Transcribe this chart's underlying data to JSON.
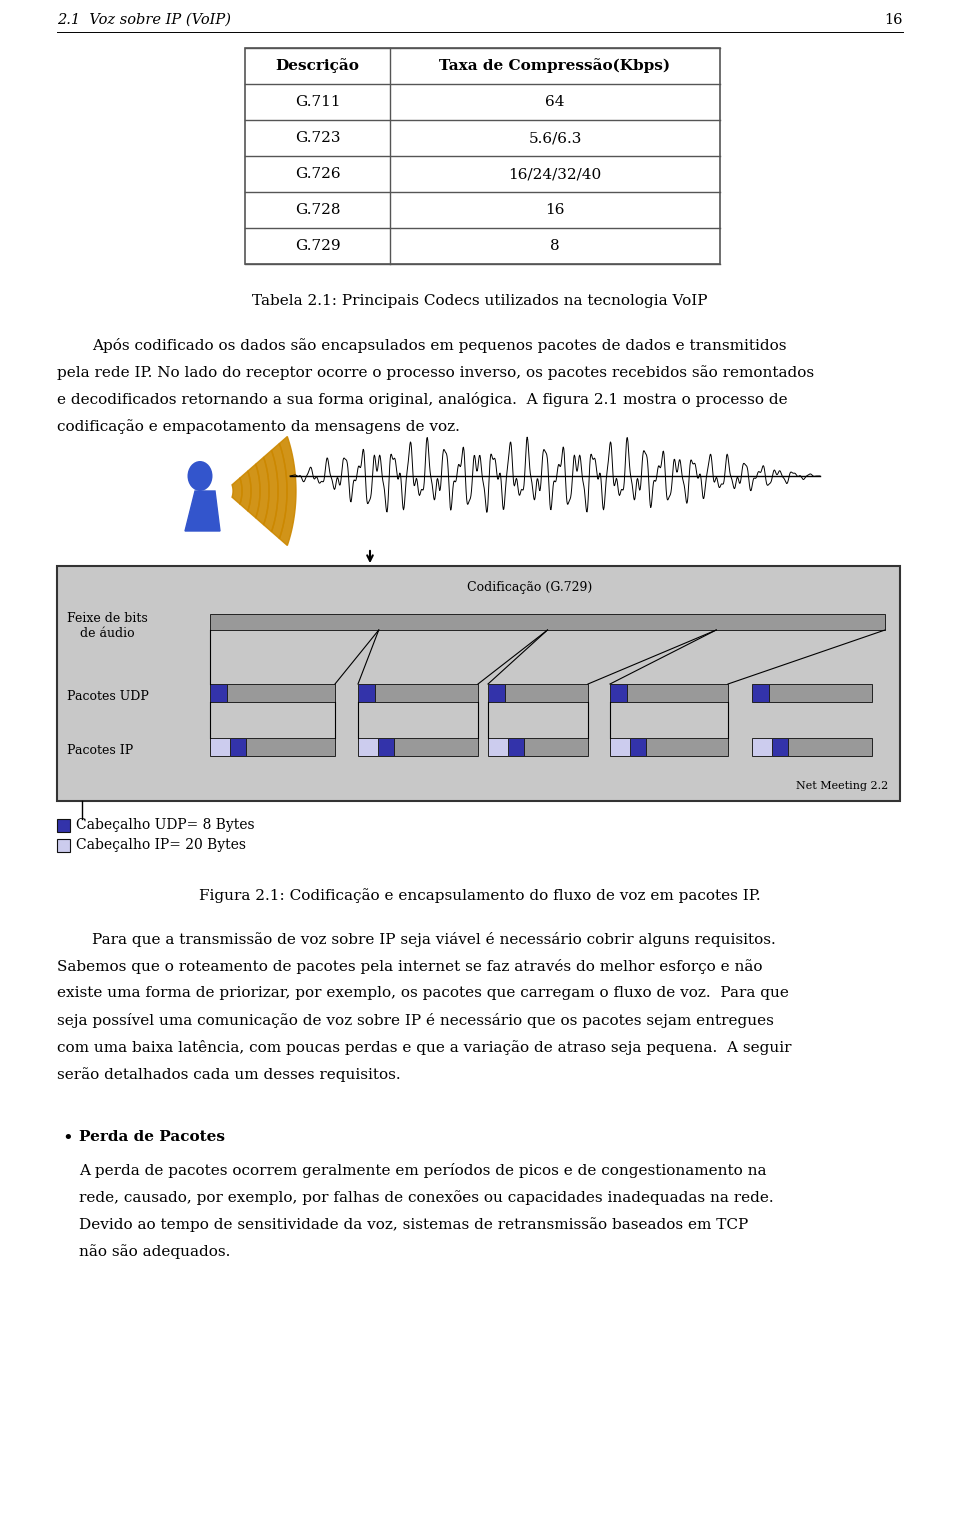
{
  "bg_color": "#ffffff",
  "page_width": 9.6,
  "page_height": 15.27,
  "header_text": "2.1  Voz sobre IP (VoIP)",
  "header_page_num": "16",
  "table_title": "Tabela 2.1: Principais Codecs utilizados na tecnologia VoIP",
  "table_headers": [
    "Descrição",
    "Taxa de Compressão(Kbps)"
  ],
  "table_rows": [
    [
      "G.711",
      "64"
    ],
    [
      "G.723",
      "5.6/6.3"
    ],
    [
      "G.726",
      "16/24/32/40"
    ],
    [
      "G.728",
      "16"
    ],
    [
      "G.729",
      "8"
    ]
  ],
  "figure_caption": "Figura 2.1: Codificação e encapsulamento do fluxo de voz em pacotes IP.",
  "legend1_color": "#3333aa",
  "legend1_text": "Cabeçalho UDP= 8 Bytes",
  "legend2_color": "#ccccee",
  "legend2_text": "Cabeçalho IP= 20 Bytes",
  "diagram_label_bits": "Feixe de bits\nde áudio",
  "diagram_label_udp": "Pacotes UDP",
  "diagram_label_ip": "Pacotes IP",
  "diagram_label_cod": "Codificação (G.729)",
  "diagram_label_netmtg": "Net Meeting 2.2",
  "para1_lines": [
    "Após codificado os dados são encapsulados em pequenos pacotes de dados e transmitidos",
    "pela rede IP. No lado do receptor ocorre o processo inverso, os pacotes recebidos são remontados",
    "e decodificados retornando a sua forma original, analógica.  A figura 2.1 mostra o processo de",
    "codificação e empacotamento da mensagens de voz."
  ],
  "para2_lines": [
    "Para que a transmissão de voz sobre IP seja viável é necessário cobrir alguns requisitos.",
    "Sabemos que o roteamento de pacotes pela internet se faz através do melhor esforço e não",
    "existe uma forma de priorizar, por exemplo, os pacotes que carregam o fluxo de voz.  Para que",
    "seja possível uma comunicação de voz sobre IP é necessário que os pacotes sejam entregues",
    "com uma baixa latência, com poucas perdas e que a variação de atraso seja pequena.  A seguir",
    "serão detalhados cada um desses requisitos."
  ],
  "bullet_title": "Perda de Pacotes",
  "bullet_body": [
    "A perda de pacotes ocorrem geralmente em períodos de picos e de congestionamento na",
    "rede, causado, por exemplo, por falhas de conexões ou capacidades inadequadas na rede.",
    "Devido ao tempo de sensitividade da voz, sistemas de retransmissão baseados em TCP",
    "não são adequados."
  ],
  "diag_bg": "#c8c8c8",
  "bits_bar_color": "#999999",
  "udp_blue": "#3333aa",
  "ip_light": "#ccccee",
  "packet_gray": "#999999",
  "person_color": "#3355cc",
  "cone_color": "#cc8800"
}
